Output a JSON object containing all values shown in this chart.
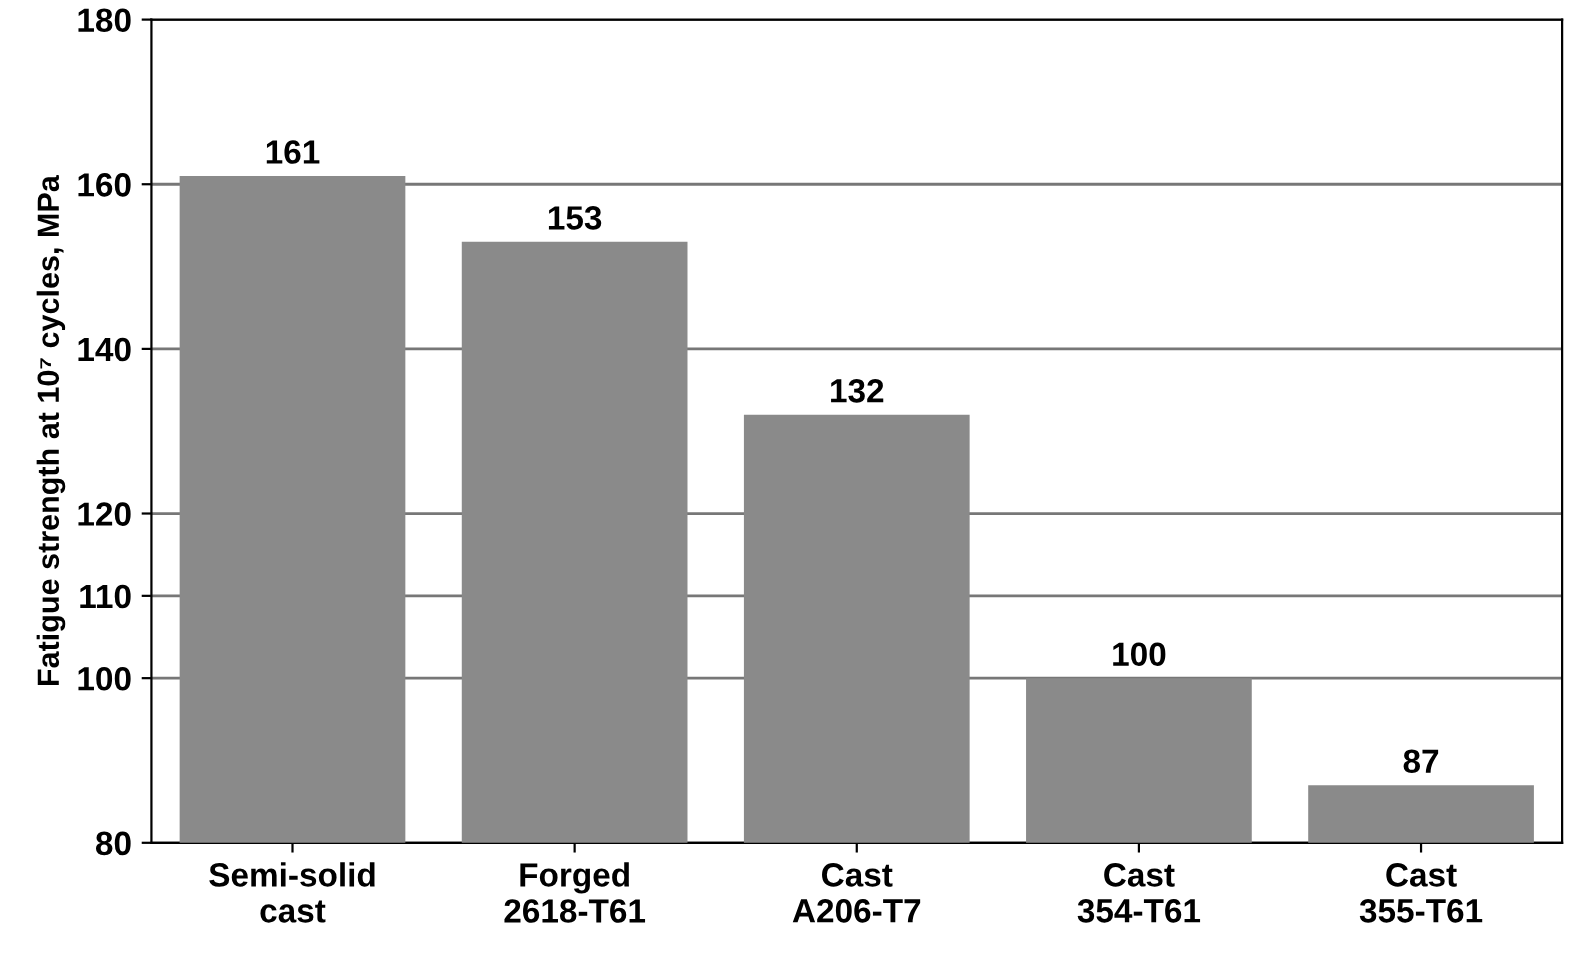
{
  "chart_data": {
    "type": "bar",
    "ylabel": "Fatigue strength at 10⁷ cycles, MPa",
    "categories": [
      "Semi-solid\ncast",
      "Forged\n2618-T61",
      "Cast\nA206-T7",
      "Cast\n354-T61",
      "Cast\n355-T61"
    ],
    "values": [
      161,
      153,
      132,
      100,
      87
    ],
    "color": "#8a8a8a",
    "ylim": [
      80,
      180
    ],
    "yticks": [
      80,
      100,
      110,
      120,
      140,
      160,
      180
    ],
    "grid": "y",
    "data_labels": true
  }
}
